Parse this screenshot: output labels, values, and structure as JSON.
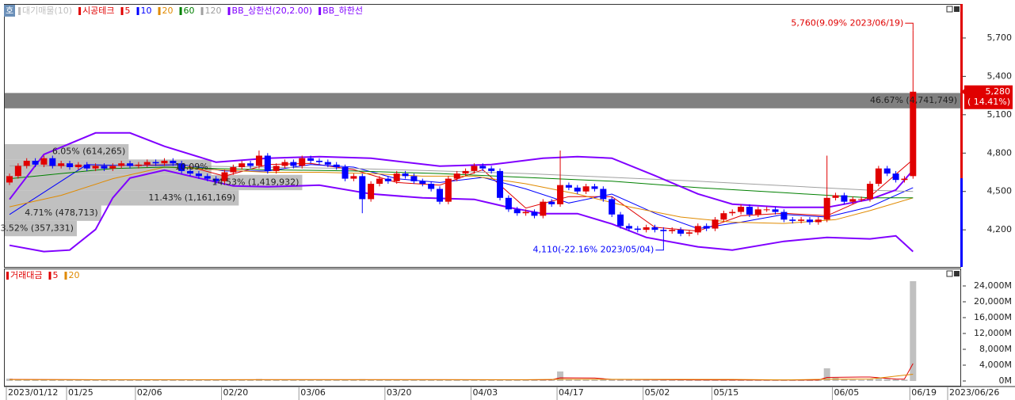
{
  "chart_data": [
    {
      "type": "candlestick",
      "name": "시공테크",
      "up_color": "#e00000",
      "down_color": "#0000ff",
      "categories": [
        "2023/01/12",
        null,
        null,
        null,
        null,
        null,
        null,
        "01/25",
        null,
        null,
        null,
        null,
        null,
        null,
        null,
        "02/06",
        null,
        null,
        null,
        null,
        null,
        null,
        null,
        null,
        null,
        "02/20",
        null,
        null,
        null,
        null,
        null,
        null,
        null,
        null,
        "03/06",
        null,
        null,
        null,
        null,
        null,
        null,
        null,
        null,
        null,
        "03/20",
        null,
        null,
        null,
        null,
        null,
        null,
        null,
        null,
        null,
        "04/03",
        null,
        null,
        null,
        null,
        null,
        null,
        null,
        null,
        null,
        "04/17",
        null,
        null,
        null,
        null,
        null,
        null,
        null,
        null,
        null,
        "05/02",
        null,
        null,
        null,
        null,
        null,
        null,
        null,
        "05/15",
        null,
        null,
        null,
        null,
        null,
        null,
        null,
        null,
        null,
        null,
        null,
        null,
        null,
        "06/05",
        null,
        null,
        null,
        null,
        null,
        null,
        null,
        null,
        "06/19"
      ],
      "x_end_label": "2023/06/26",
      "open": [
        4570,
        4620,
        4700,
        4740,
        4710,
        4760,
        4700,
        4720,
        4690,
        4710,
        4680,
        4700,
        4680,
        4700,
        4720,
        4700,
        4710,
        4730,
        4720,
        4740,
        4720,
        4660,
        4640,
        4620,
        4600,
        4580,
        4650,
        4690,
        4720,
        4700,
        4780,
        4660,
        4700,
        4730,
        4700,
        4760,
        4740,
        4730,
        4710,
        4690,
        4600,
        4620,
        4440,
        4560,
        4600,
        4580,
        4640,
        4620,
        4580,
        4560,
        4520,
        4420,
        4600,
        4640,
        4660,
        4700,
        4680,
        4660,
        4450,
        4360,
        4330,
        4340,
        4310,
        4420,
        4400,
        4550,
        4530,
        4500,
        4540,
        4520,
        4440,
        4320,
        4230,
        4210,
        4200,
        4220,
        4200,
        4190,
        4200,
        4170,
        4180,
        4230,
        4210,
        4280,
        4330,
        4340,
        4380,
        4320,
        4360,
        4360,
        4340,
        4280,
        4270,
        4280,
        4260,
        4280,
        4450,
        4470,
        4420,
        4440,
        4440,
        4560,
        4680,
        4640,
        4590,
        4620
      ],
      "high": [
        4640,
        4720,
        4760,
        4760,
        4780,
        4780,
        4740,
        4740,
        4730,
        4730,
        4720,
        4720,
        4720,
        4740,
        4740,
        4730,
        4750,
        4750,
        4760,
        4760,
        4740,
        4680,
        4660,
        4640,
        4620,
        4670,
        4710,
        4740,
        4740,
        4820,
        4800,
        4720,
        4750,
        4750,
        4780,
        4780,
        4760,
        4750,
        4730,
        4710,
        4640,
        4640,
        4580,
        4620,
        4620,
        4660,
        4660,
        4640,
        4600,
        4580,
        4540,
        4620,
        4660,
        4680,
        4720,
        4720,
        4700,
        4680,
        4470,
        4380,
        4360,
        4360,
        4440,
        4440,
        4820,
        4570,
        4550,
        4560,
        4560,
        4540,
        4460,
        4340,
        4250,
        4230,
        4240,
        4240,
        4220,
        4220,
        4220,
        4200,
        4250,
        4250,
        4300,
        4350,
        4360,
        4400,
        4400,
        4380,
        4380,
        4380,
        4360,
        4300,
        4300,
        4300,
        4300,
        4780,
        4490,
        4490,
        4460,
        4460,
        4580,
        4700,
        4700,
        4660,
        4620,
        5760
      ],
      "low": [
        4550,
        4600,
        4680,
        4690,
        4690,
        4680,
        4680,
        4670,
        4670,
        4660,
        4660,
        4660,
        4660,
        4680,
        4680,
        4680,
        4690,
        4700,
        4700,
        4700,
        4640,
        4620,
        4600,
        4580,
        4560,
        4560,
        4630,
        4670,
        4680,
        4680,
        4640,
        4640,
        4680,
        4680,
        4680,
        4720,
        4710,
        4690,
        4670,
        4580,
        4580,
        4330,
        4420,
        4540,
        4560,
        4560,
        4600,
        4560,
        4540,
        4500,
        4400,
        4400,
        4580,
        4620,
        4640,
        4660,
        4640,
        4430,
        4340,
        4310,
        4310,
        4290,
        4290,
        4380,
        4380,
        4510,
        4480,
        4480,
        4500,
        4420,
        4300,
        4210,
        4190,
        4180,
        4180,
        4180,
        4110,
        4170,
        4150,
        4150,
        4160,
        4190,
        4190,
        4260,
        4310,
        4320,
        4300,
        4300,
        4340,
        4320,
        4260,
        4250,
        4250,
        4240,
        4240,
        4260,
        4430,
        4400,
        4400,
        4420,
        4420,
        4540,
        4620,
        4570,
        4570,
        4600
      ],
      "close": [
        4620,
        4700,
        4740,
        4710,
        4760,
        4700,
        4720,
        4690,
        4710,
        4680,
        4700,
        4680,
        4700,
        4720,
        4700,
        4710,
        4730,
        4720,
        4740,
        4720,
        4660,
        4640,
        4620,
        4600,
        4580,
        4650,
        4690,
        4720,
        4700,
        4780,
        4660,
        4700,
        4730,
        4700,
        4760,
        4740,
        4730,
        4710,
        4690,
        4600,
        4620,
        4440,
        4560,
        4600,
        4580,
        4640,
        4620,
        4580,
        4560,
        4520,
        4420,
        4600,
        4640,
        4660,
        4700,
        4680,
        4660,
        4450,
        4360,
        4330,
        4340,
        4310,
        4420,
        4400,
        4550,
        4530,
        4500,
        4540,
        4520,
        4440,
        4320,
        4230,
        4210,
        4200,
        4220,
        4200,
        4190,
        4200,
        4170,
        4180,
        4230,
        4210,
        4280,
        4330,
        4340,
        4380,
        4320,
        4360,
        4360,
        4340,
        4280,
        4270,
        4280,
        4260,
        4280,
        4450,
        4470,
        4420,
        4440,
        4440,
        4560,
        4680,
        4640,
        4590,
        4600,
        5280
      ],
      "ylim": [
        3910,
        5966
      ],
      "yticks": [
        {
          "value": 4200,
          "label": "4,200"
        },
        {
          "value": 4500,
          "label": "4,500"
        },
        {
          "value": 4800,
          "label": "4,800"
        },
        {
          "value": 5100,
          "label": "5,100"
        },
        {
          "value": 5400,
          "label": "5,400"
        },
        {
          "value": 5700,
          "label": "5,700"
        }
      ],
      "lines": [
        {
          "name": "5",
          "color": "#e00000",
          "x": [
            4,
            10,
            15,
            20,
            25,
            30,
            35,
            40,
            45,
            50,
            55,
            60,
            65,
            70,
            75,
            80,
            85,
            90,
            95,
            100,
            105
          ],
          "values": [
            4700,
            4700,
            4705,
            4710,
            4620,
            4710,
            4720,
            4670,
            4570,
            4550,
            4670,
            4370,
            4460,
            4460,
            4220,
            4190,
            4310,
            4330,
            4310,
            4460,
            4750
          ]
        },
        {
          "name": "10",
          "color": "#0000ff",
          "x": [
            0,
            9,
            15,
            20,
            25,
            30,
            35,
            40,
            45,
            50,
            55,
            60,
            65,
            70,
            75,
            80,
            85,
            90,
            95,
            100,
            105
          ],
          "values": [
            4320,
            4710,
            4700,
            4710,
            4660,
            4660,
            4710,
            4690,
            4600,
            4570,
            4610,
            4520,
            4410,
            4480,
            4330,
            4210,
            4260,
            4320,
            4300,
            4380,
            4530
          ]
        },
        {
          "name": "20",
          "color": "#e08a00",
          "x": [
            0,
            6,
            12,
            18,
            24,
            30,
            36,
            42,
            48,
            54,
            60,
            66,
            72,
            78,
            84,
            90,
            96,
            100,
            105
          ],
          "values": [
            4380,
            4470,
            4600,
            4690,
            4670,
            4650,
            4650,
            4640,
            4620,
            4620,
            4560,
            4480,
            4380,
            4300,
            4260,
            4250,
            4280,
            4350,
            4450
          ]
        },
        {
          "name": "60",
          "color": "#008000",
          "x": [
            0,
            6,
            12,
            18,
            24,
            30,
            40,
            50,
            60,
            70,
            80,
            90,
            100,
            105
          ],
          "values": [
            4600,
            4640,
            4680,
            4690,
            4680,
            4670,
            4660,
            4640,
            4610,
            4580,
            4530,
            4490,
            4450,
            4450
          ]
        },
        {
          "name": "120",
          "color": "#a0a0a0",
          "x": [
            0,
            20,
            40,
            60,
            80,
            100,
            105
          ],
          "values": [
            4700,
            4700,
            4680,
            4640,
            4580,
            4510,
            4500
          ]
        },
        {
          "name": "BB_상한선(20,2.00)",
          "color": "#8000ff",
          "x": [
            0,
            4,
            10,
            14,
            18,
            24,
            30,
            36,
            42,
            50,
            56,
            62,
            66,
            70,
            75,
            80,
            84,
            90,
            95,
            100,
            103,
            105
          ],
          "values": [
            4438,
            4790,
            4958,
            4958,
            4853,
            4729,
            4760,
            4772,
            4760,
            4698,
            4710,
            4760,
            4772,
            4760,
            4624,
            4481,
            4401,
            4376,
            4376,
            4438,
            4512,
            4667
          ]
        },
        {
          "name": "BB_하한선",
          "color": "#8000ff",
          "x": [
            0,
            4,
            7,
            10,
            12,
            14,
            18,
            22,
            26,
            30,
            36,
            42,
            48,
            54,
            58,
            62,
            66,
            70,
            74,
            80,
            84,
            90,
            95,
            100,
            103,
            105
          ],
          "values": [
            4079,
            4030,
            4042,
            4203,
            4450,
            4605,
            4667,
            4605,
            4543,
            4537,
            4549,
            4481,
            4450,
            4438,
            4376,
            4327,
            4327,
            4246,
            4141,
            4067,
            4042,
            4110,
            4141,
            4129,
            4153,
            4030
          ]
        }
      ],
      "profile": {
        "name": "대기매물(10)",
        "color": "#c0c0c0",
        "highlight_color": "#808080",
        "rows": [
          {
            "low": 4150,
            "high": 4270,
            "value": 3.52,
            "value_label": "3.52% (357,331)"
          },
          {
            "low": 4270,
            "high": 4390,
            "value": 4.71,
            "value_label": "4.71% (478,713)"
          },
          {
            "low": 4390,
            "high": 4510,
            "value": 11.43,
            "value_label": "11.43% (1,161,169)"
          },
          {
            "low": 4510,
            "high": 4630,
            "value": 14.53,
            "value_label": "14.53% (1,419,932)"
          },
          {
            "low": 4630,
            "high": 4750,
            "value": 10.09,
            "value_label": "10.09%"
          },
          {
            "low": 4750,
            "high": 4870,
            "value": 6.05,
            "value_label": "6.05% (614,265)"
          },
          {
            "low": 5150,
            "high": 5270,
            "value": 46.67,
            "value_label": "46.67% (4,741,749)"
          }
        ]
      },
      "annotations": {
        "high": "5,760(9.09% 2023/06/19)",
        "low": "4,110(-22.16% 2023/05/04)"
      },
      "last_price": {
        "value": 5280,
        "label": "5,280",
        "change_label": "( 14.41%)",
        "color": "#e00000"
      },
      "icon": "호"
    },
    {
      "type": "bar",
      "name": "거래대금",
      "color": "#e00000",
      "bar_color": "#c0c0c0",
      "values": [
        600,
        400,
        300,
        350,
        300,
        300,
        250,
        300,
        300,
        250,
        300,
        250,
        300,
        300,
        250,
        300,
        350,
        300,
        300,
        250,
        300,
        300,
        250,
        300,
        350,
        300,
        300,
        400,
        300,
        500,
        350,
        300,
        300,
        250,
        300,
        300,
        250,
        300,
        300,
        350,
        300,
        450,
        400,
        300,
        300,
        300,
        250,
        300,
        300,
        300,
        350,
        400,
        300,
        300,
        300,
        250,
        300,
        400,
        350,
        300,
        250,
        300,
        350,
        300,
        2400,
        500,
        350,
        300,
        300,
        300,
        350,
        400,
        300,
        250,
        300,
        250,
        300,
        250,
        300,
        250,
        300,
        250,
        400,
        350,
        300,
        300,
        250,
        300,
        250,
        250,
        250,
        250,
        250,
        250,
        300,
        3200,
        800,
        400,
        350,
        300,
        500,
        700,
        500,
        400,
        350,
        25200
      ],
      "ylim": [
        -1200,
        28200
      ],
      "yticks": [
        {
          "value": 0,
          "label": "0M"
        },
        {
          "value": 4000,
          "label": "4,000M"
        },
        {
          "value": 8000,
          "label": "8,000M"
        },
        {
          "value": 12000,
          "label": "12,000M"
        },
        {
          "value": 16000,
          "label": "16,000M"
        },
        {
          "value": 20000,
          "label": "20,000M"
        },
        {
          "value": 24000,
          "label": "24,000M"
        }
      ],
      "lines": [
        {
          "name": "5",
          "color": "#e00000",
          "x": [
            0,
            10,
            20,
            30,
            40,
            50,
            60,
            63,
            64,
            68,
            70,
            80,
            90,
            94,
            95,
            99,
            100,
            103,
            104,
            105
          ],
          "values": [
            400,
            300,
            300,
            320,
            320,
            330,
            300,
            320,
            800,
            750,
            400,
            280,
            260,
            260,
            900,
            1000,
            1000,
            500,
            480,
            4400
          ]
        },
        {
          "name": "20",
          "color": "#e08a00",
          "x": [
            0,
            20,
            40,
            60,
            64,
            84,
            90,
            95,
            100,
            105
          ],
          "values": [
            350,
            320,
            320,
            310,
            420,
            400,
            280,
            440,
            500,
            1700
          ]
        }
      ]
    }
  ]
}
